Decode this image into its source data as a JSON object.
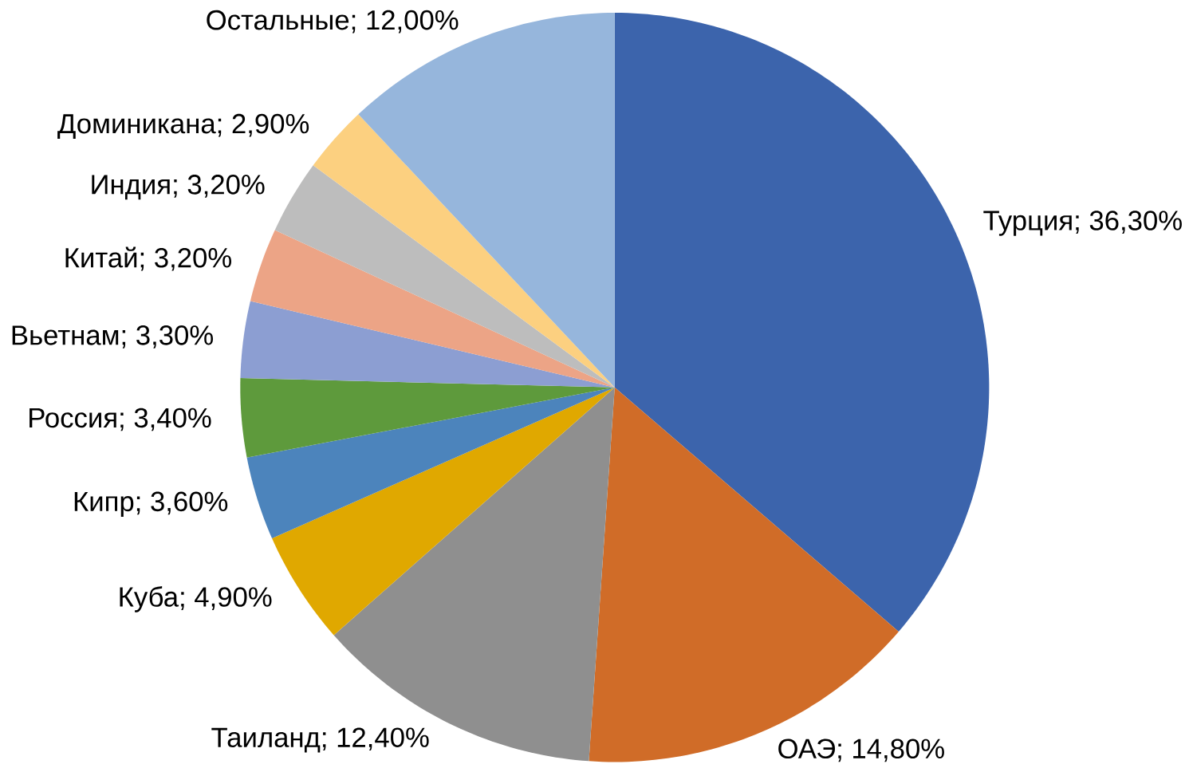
{
  "chart_data": {
    "type": "pie",
    "categories": [
      "Турция",
      "ОАЭ",
      "Таиланд",
      "Куба",
      "Кипр",
      "Россия",
      "Вьетнам",
      "Китай",
      "Индия",
      "Доминикана",
      "Остальные"
    ],
    "values": [
      36.3,
      14.8,
      12.4,
      4.9,
      3.6,
      3.4,
      3.3,
      3.2,
      3.2,
      2.9,
      12.0
    ],
    "value_labels": [
      "; 36,30%",
      "; 14,80%",
      "; 12,40%",
      "; 4,90%",
      "; 3,60%",
      "; 3,40%",
      "; 3,30%",
      "; 3,20%",
      "; 3,20%",
      "; 2,90%",
      "; 12,00%"
    ],
    "colors": [
      "#3c64ac",
      "#d06c28",
      "#8f8f8f",
      "#e0a800",
      "#4c84bc",
      "#5e9a3c",
      "#8c9ed2",
      "#eca486",
      "#bdbdbd",
      "#fcd080",
      "#96b6dc"
    ]
  }
}
